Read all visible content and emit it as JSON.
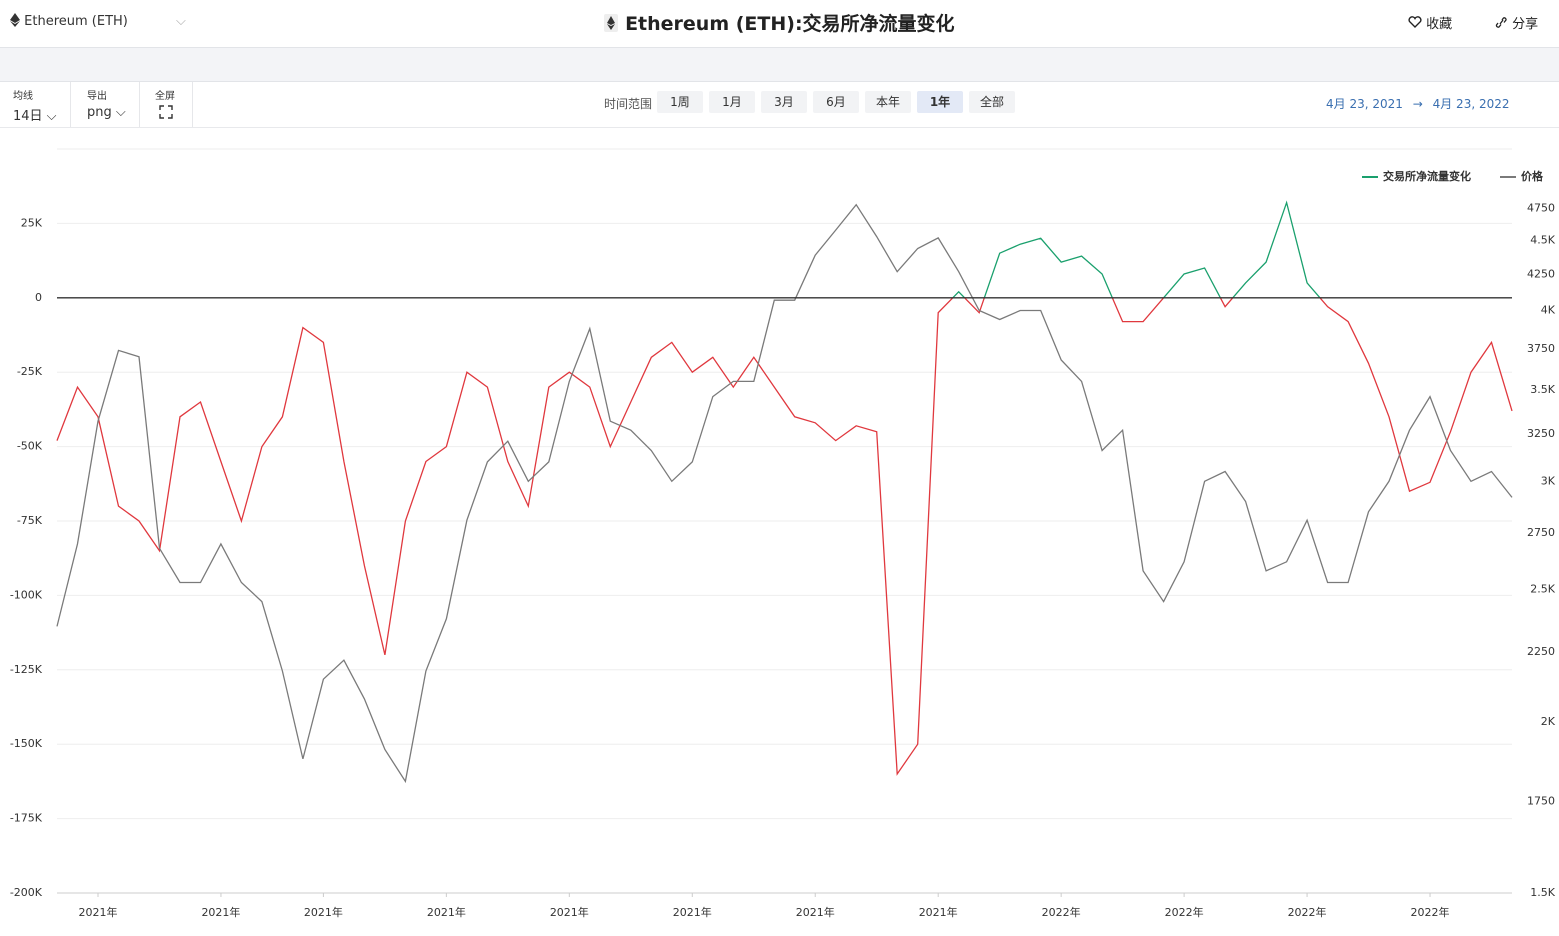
{
  "header": {
    "asset": "Ethereum (ETH)",
    "title": "Ethereum (ETH):交易所净流量变化",
    "favorite": "收藏",
    "share": "分享"
  },
  "toolbar": {
    "ma_label": "均线",
    "ma_value": "14日",
    "export_label": "导出",
    "export_value": "png",
    "fullscreen_label": "全屏",
    "range_label": "时间范围",
    "ranges": [
      "1周",
      "1月",
      "3月",
      "6月",
      "本年",
      "1年",
      "全部"
    ],
    "active_range": 5,
    "date_from": "4月 23, 2021",
    "date_arrow": "→",
    "date_to": "4月 23, 2022"
  },
  "chart_data": {
    "type": "line",
    "categories": [
      null,
      null,
      "2021年",
      null,
      null,
      null,
      null,
      null,
      "2021年",
      null,
      null,
      null,
      null,
      "2021年",
      null,
      null,
      null,
      null,
      null,
      "2021年",
      null,
      null,
      null,
      null,
      null,
      "2021年",
      null,
      null,
      null,
      null,
      null,
      "2021年",
      null,
      null,
      null,
      null,
      null,
      "2021年",
      null,
      null,
      null,
      null,
      null,
      "2021年",
      null,
      null,
      null,
      null,
      null,
      "2022年",
      null,
      null,
      null,
      null,
      null,
      "2022年",
      null,
      null,
      null,
      null,
      null,
      "2022年",
      null,
      null,
      null,
      null,
      null,
      "2022年",
      null,
      null,
      null,
      null
    ],
    "series": [
      {
        "name": "交易所净流量变化",
        "color": "#1aa06d",
        "negative_color": "#e0383e",
        "values": [
          -48000,
          -30000,
          -40000,
          -70000,
          -75000,
          -85000,
          -40000,
          -35000,
          -55000,
          -75000,
          -50000,
          -40000,
          -10000,
          -15000,
          -55000,
          -90000,
          -120000,
          -75000,
          -55000,
          -50000,
          -25000,
          -30000,
          -55000,
          -70000,
          -30000,
          -25000,
          -30000,
          -50000,
          -35000,
          -20000,
          -15000,
          -25000,
          -20000,
          -30000,
          -20000,
          -30000,
          -40000,
          -42000,
          -48000,
          -43000,
          -45000,
          -160000,
          -150000,
          -5000,
          2000,
          -5000,
          15000,
          18000,
          20000,
          12000,
          14000,
          8000,
          -8000,
          -8000,
          0,
          8000,
          10000,
          -3000,
          5000,
          12000,
          32000,
          5000,
          -3000,
          -8000,
          -22000,
          -40000,
          -65000,
          -62000,
          -45000,
          -25000,
          -15000,
          -38000
        ]
      },
      {
        "name": "价格",
        "color": "#7a7a7a",
        "axis": "y2",
        "values": [
          2350,
          2700,
          3320,
          3740,
          3700,
          2680,
          2530,
          2530,
          2700,
          2530,
          2450,
          2180,
          1880,
          2150,
          2220,
          2080,
          1910,
          1810,
          2180,
          2380,
          2810,
          3100,
          3210,
          3000,
          3100,
          3550,
          3880,
          3320,
          3270,
          3160,
          3000,
          3100,
          3460,
          3550,
          3550,
          4070,
          4070,
          4390,
          4580,
          4780,
          4530,
          4270,
          4440,
          4520,
          4270,
          4000,
          3940,
          4000,
          4000,
          3680,
          3550,
          3160,
          3270,
          2580,
          2450,
          2620,
          3000,
          3050,
          2900,
          2580,
          2620,
          2810,
          2530,
          2530,
          2850,
          3000,
          3270,
          3460,
          3160,
          3000,
          3050,
          2920
        ]
      }
    ],
    "ylim": [
      -200000,
      50000
    ],
    "yticks": [
      {
        "value": 25000,
        "label": "25K"
      },
      0,
      {
        "value": -25000,
        "label": "-25K"
      },
      {
        "value": -50000,
        "label": "-50K"
      },
      {
        "value": -75000,
        "label": "-75K"
      },
      {
        "value": -100000,
        "label": "-100K"
      },
      {
        "value": -125000,
        "label": "-125K"
      },
      {
        "value": -150000,
        "label": "-150K"
      },
      {
        "value": -175000,
        "label": "-175K"
      },
      {
        "value": -200000,
        "label": "-200K"
      }
    ],
    "y2lim": [
      1500,
      5250
    ],
    "y2_log": true,
    "y2ticks": [
      4750,
      {
        "value": 4500,
        "label": "4.5K"
      },
      4250,
      {
        "value": 4000,
        "label": "4K"
      },
      3750,
      {
        "value": 3500,
        "label": "3.5K"
      },
      3250,
      {
        "value": 3000,
        "label": "3K"
      },
      2750,
      {
        "value": 2500,
        "label": "2.5K"
      },
      2250,
      {
        "value": 2000,
        "label": "2K"
      },
      1750,
      {
        "value": 1500,
        "label": "1.5K"
      }
    ],
    "grid": true,
    "zero_line": true,
    "legend": "top-right"
  }
}
